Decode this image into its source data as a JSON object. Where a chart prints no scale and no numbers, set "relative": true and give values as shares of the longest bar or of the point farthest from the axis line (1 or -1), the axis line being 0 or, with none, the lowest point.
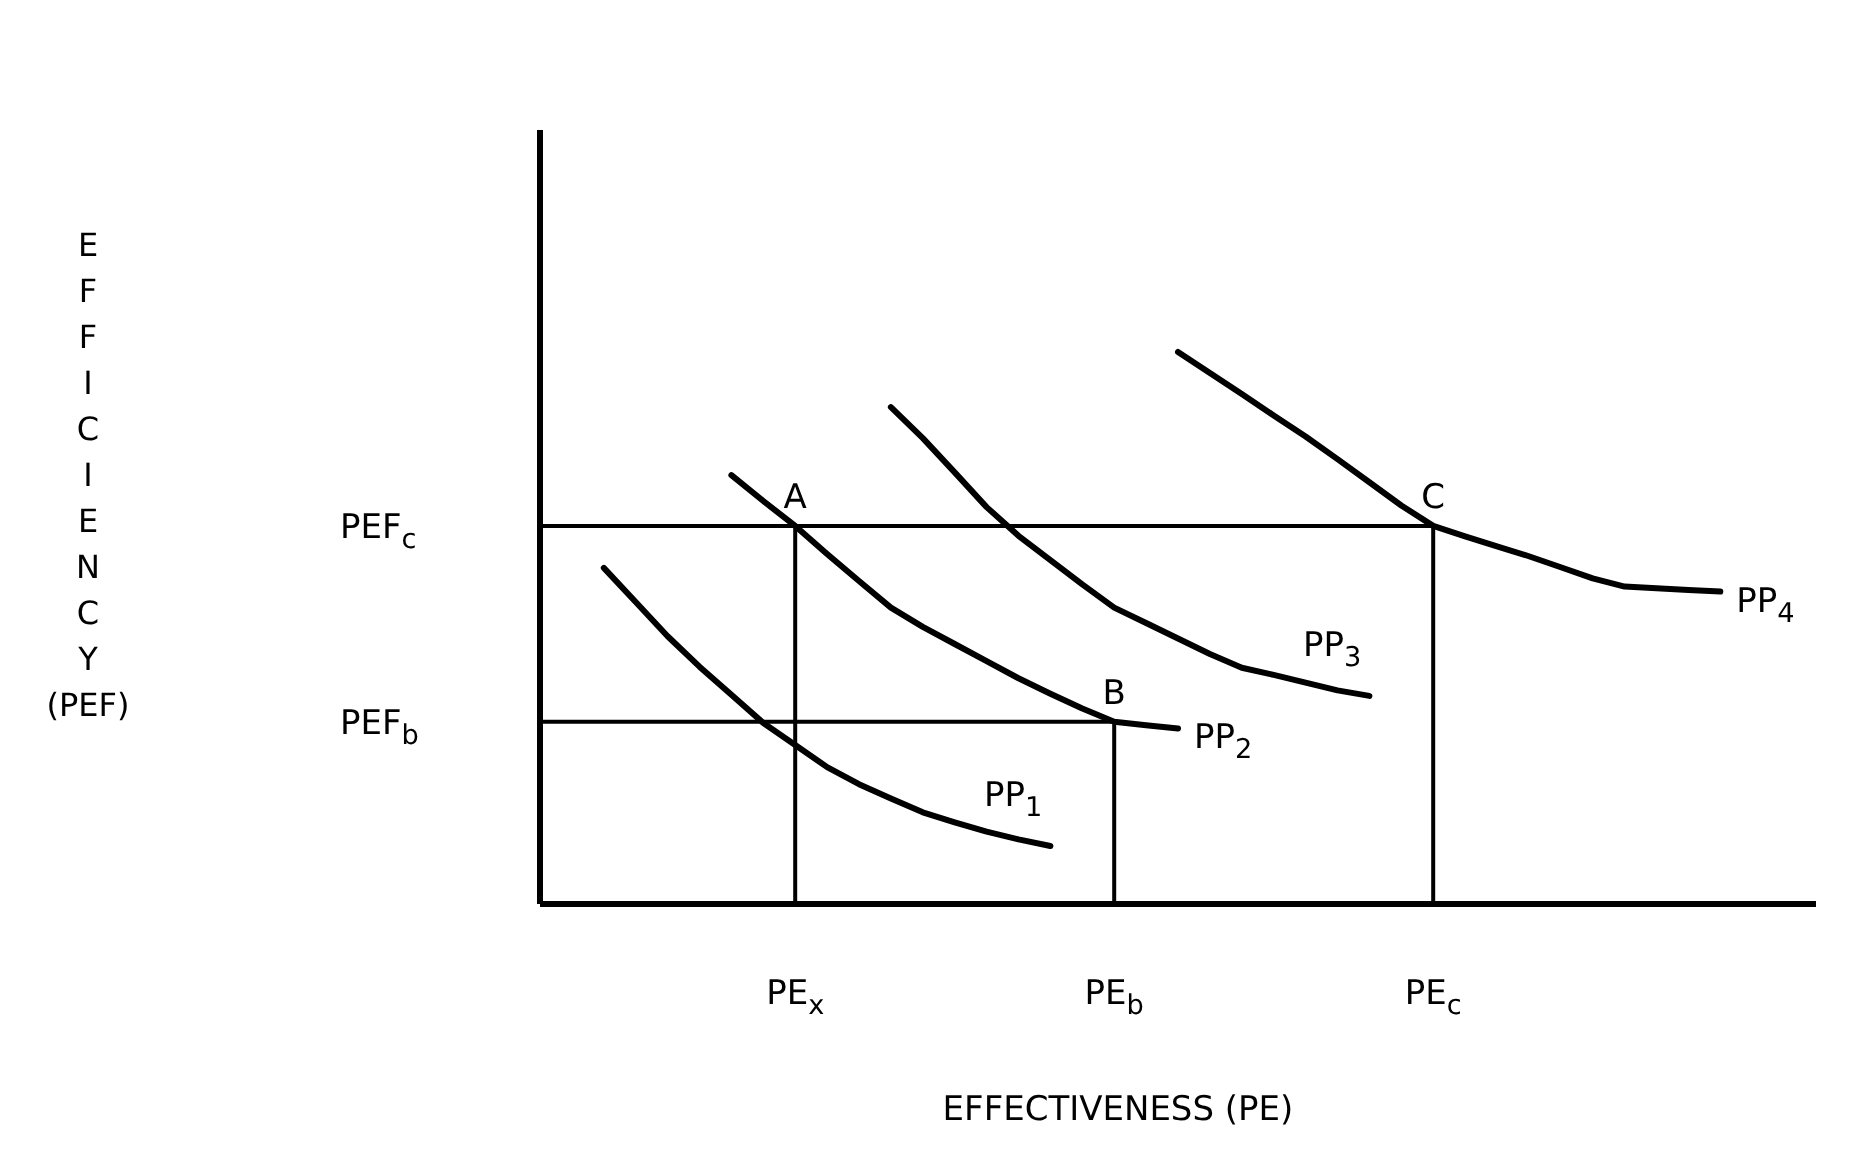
{
  "chart_data": {
    "type": "line",
    "relative": true,
    "xlabel": "EFFECTIVENESS (PE)",
    "ylabel": "EFFICIENCY (PEF)",
    "line_style": "solid",
    "categories": [
      null,
      null,
      null,
      null,
      null,
      null,
      null,
      null,
      "PE$_{x}$",
      null,
      null,
      null,
      null,
      null,
      null,
      null,
      null,
      null,
      "PE$_{b}$",
      null,
      null,
      null,
      null,
      null,
      null,
      null,
      null,
      null,
      "PE$_{c}$",
      null,
      null,
      null,
      null,
      null,
      null,
      null,
      null,
      null,
      null,
      null,
      null
    ],
    "series": [
      {
        "name": "PP$_{1}$",
        "color": "#000000",
        "values": [
          null,
          null,
          0.609,
          0.547,
          0.485,
          0.43,
          0.379,
          0.328,
          0.288,
          0.248,
          0.217,
          0.191,
          0.166,
          0.148,
          0.131,
          0.117,
          0.105,
          null,
          null,
          null,
          null,
          null,
          null,
          null,
          null,
          null,
          null,
          null,
          null,
          null,
          null,
          null,
          null,
          null,
          null,
          null,
          null,
          null,
          null,
          null,
          null
        ]
      },
      {
        "name": "PP$_{2}$",
        "color": "#000000",
        "values": [
          null,
          null,
          null,
          null,
          null,
          null,
          0.777,
          0.73,
          0.685,
          0.634,
          0.585,
          0.537,
          0.502,
          0.471,
          0.44,
          0.409,
          0.381,
          0.354,
          0.33,
          0.324,
          0.318,
          null,
          null,
          null,
          null,
          null,
          null,
          null,
          null,
          null,
          null,
          null,
          null,
          null,
          null,
          null,
          null,
          null,
          null,
          null,
          null
        ]
      },
      {
        "name": "PP$_{3}$",
        "color": "#000000",
        "values": [
          null,
          null,
          null,
          null,
          null,
          null,
          null,
          null,
          null,
          null,
          null,
          0.9,
          0.844,
          0.782,
          0.719,
          0.667,
          0.623,
          0.579,
          0.537,
          0.509,
          0.481,
          0.453,
          0.428,
          0.415,
          0.401,
          0.387,
          0.377,
          null,
          null,
          null,
          null,
          null,
          null,
          null,
          null,
          null,
          null,
          null,
          null,
          null,
          null
        ]
      },
      {
        "name": "PP$_{4}$",
        "color": "#000000",
        "values": [
          null,
          null,
          null,
          null,
          null,
          null,
          null,
          null,
          null,
          null,
          null,
          null,
          null,
          null,
          null,
          null,
          null,
          null,
          null,
          null,
          1,
          0.962,
          0.924,
          0.885,
          0.847,
          0.806,
          0.764,
          0.722,
          0.685,
          0.666,
          0.648,
          0.63,
          0.61,
          0.59,
          0.575,
          0.572,
          0.569,
          0.566,
          null,
          null,
          null
        ]
      }
    ],
    "annotations": [
      "PEF$_{c}$",
      "PEF$_{b}$",
      {
        "text": "A",
        "x": "PE$_{x}$",
        "y": 0.685
      },
      {
        "text": "B",
        "x": "PE$_{b}$",
        "y": 0.33
      },
      {
        "text": "C",
        "x": "PE$_{c}$",
        "y": 0.685
      }
    ]
  }
}
